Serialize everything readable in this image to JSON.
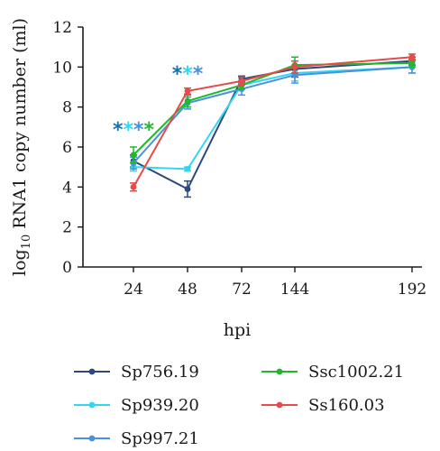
{
  "chart_data": {
    "type": "line",
    "ylabel_main": "log",
    "ylabel_sub": "10",
    "ylabel_rest": " RNA1 copy number (ml)",
    "xlabel": "hpi",
    "ylim": [
      0,
      12
    ],
    "yticks": [
      "0",
      "2",
      "4",
      "6",
      "8",
      "10",
      "12"
    ],
    "x_positions": [
      24,
      48,
      72,
      144,
      192
    ],
    "x_labels": [
      "24",
      "48",
      "72",
      "144",
      "192"
    ],
    "series": [
      {
        "name": "Sp756.19",
        "color": "#2b4a7a",
        "y": [
          5.3,
          3.9,
          9.4,
          9.9,
          10.3
        ],
        "err": [
          0.3,
          0.4,
          0.15,
          0.4,
          0.2
        ]
      },
      {
        "name": "Sp939.20",
        "color": "#33d6f0",
        "y": [
          5.0,
          4.9,
          9.1,
          9.7,
          10.0
        ],
        "err": [
          0.2,
          0.1,
          0.2,
          0.4,
          0.3
        ]
      },
      {
        "name": "Sp997.21",
        "color": "#4a90e2",
        "y": [
          5.2,
          8.2,
          8.9,
          9.6,
          10.0
        ],
        "err": [
          0.3,
          0.3,
          0.3,
          0.4,
          0.3
        ]
      },
      {
        "name": "Ssc1002.21",
        "color": "#1fb82a",
        "y": [
          5.6,
          8.3,
          9.1,
          10.1,
          10.2
        ],
        "err": [
          0.4,
          0.3,
          0.2,
          0.4,
          0.2
        ]
      },
      {
        "name": "Ss160.03",
        "color": "#e84a4a",
        "y": [
          4.0,
          8.8,
          9.3,
          10.0,
          10.5
        ],
        "err": [
          0.2,
          0.15,
          0.2,
          0.3,
          0.15
        ]
      }
    ],
    "annotations": [
      {
        "x": 24,
        "y": 6.9,
        "stars": [
          {
            "text": "*",
            "color": "#1a6fb0"
          },
          {
            "text": "*",
            "color": "#33d6f0"
          },
          {
            "text": "*",
            "color": "#4a90e2"
          },
          {
            "text": "*",
            "color": "#1fb82a"
          }
        ]
      },
      {
        "x": 48,
        "y": 9.7,
        "stars": [
          {
            "text": "*",
            "color": "#1a6fb0"
          },
          {
            "text": "*",
            "color": "#33d6f0"
          },
          {
            "text": "*",
            "color": "#4a90e2"
          }
        ]
      }
    ],
    "legend_order": [
      "Sp756.19",
      "Ssc1002.21",
      "Sp939.20",
      "Ss160.03",
      "Sp997.21"
    ],
    "legend_placement": "bottom"
  }
}
